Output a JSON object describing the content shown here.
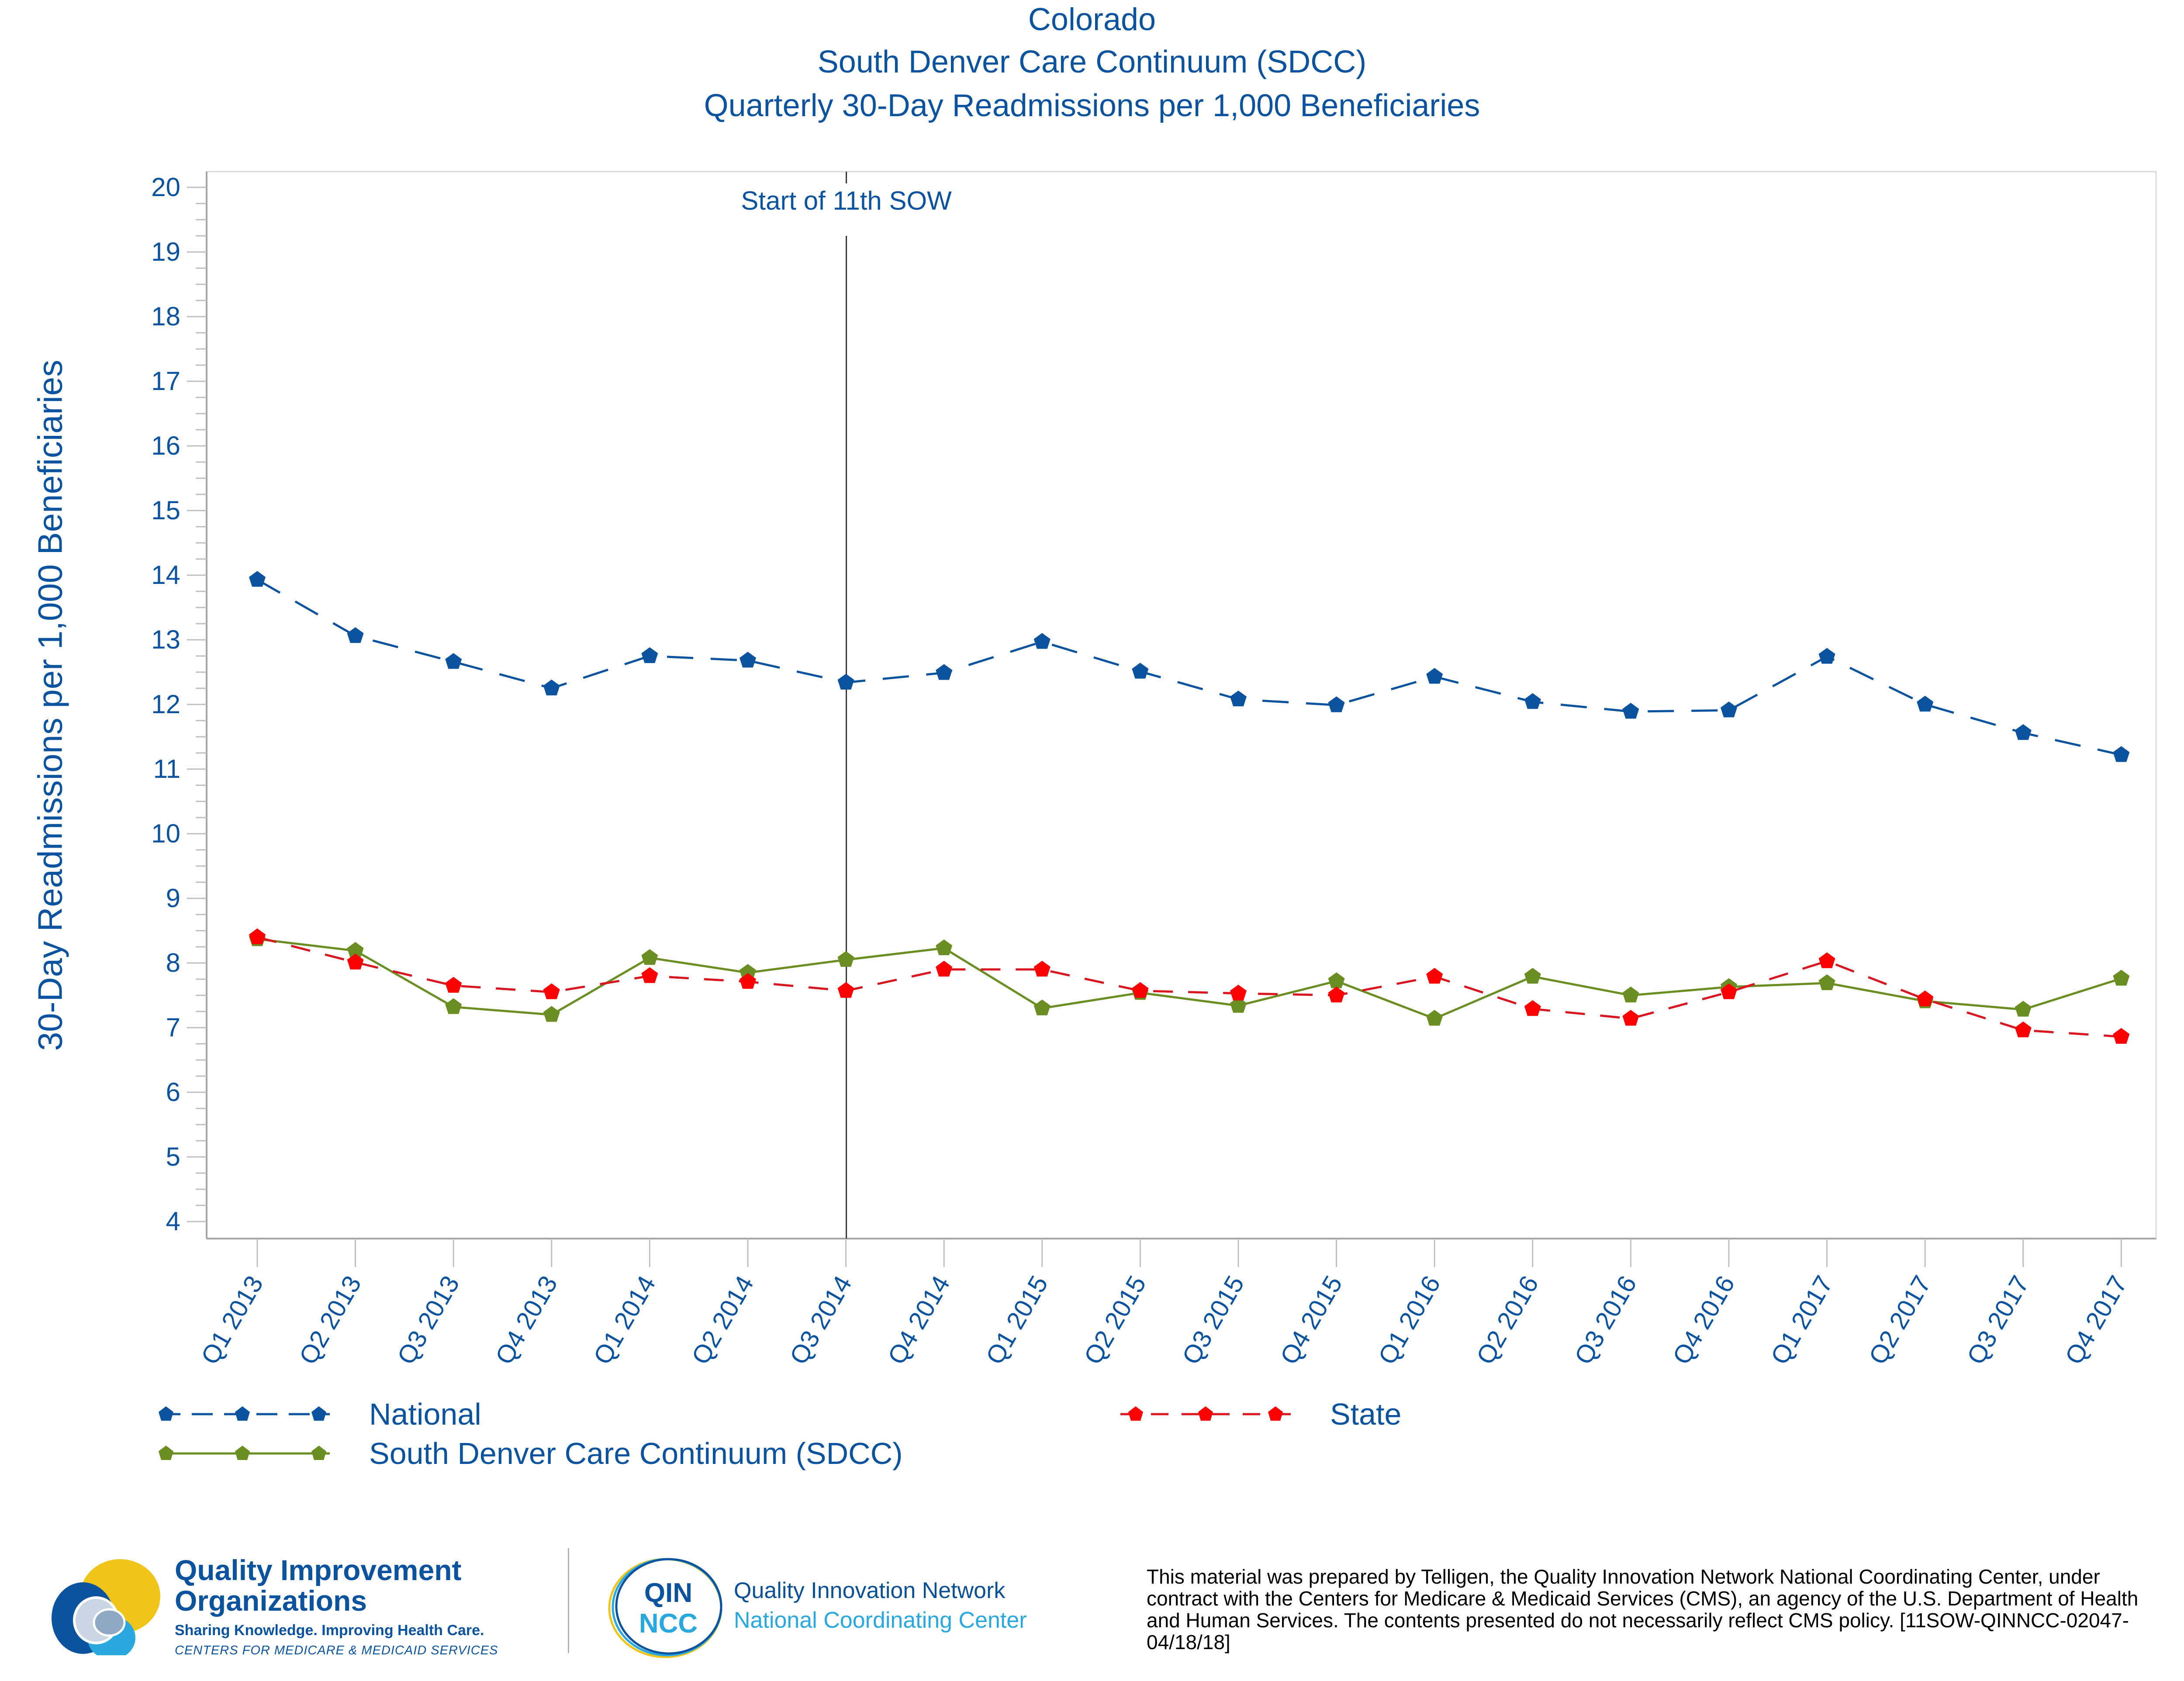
{
  "chart_data": {
    "type": "line",
    "title": [
      "Colorado",
      "South Denver Care Continuum (SDCC)",
      "Quarterly 30-Day Readmissions per 1,000 Beneficiaries"
    ],
    "xlabel": "",
    "ylabel": "30-Day Readmissions per 1,000 Beneficiaries",
    "ylim": [
      4,
      20
    ],
    "yticks": [
      "4",
      "5",
      "6",
      "7",
      "8",
      "9",
      "10",
      "11",
      "12",
      "13",
      "14",
      "15",
      "16",
      "17",
      "18",
      "19",
      "20"
    ],
    "grid": false,
    "legend_position": "bottom",
    "categories": [
      "Q1 2013",
      "Q2 2013",
      "Q3 2013",
      "Q4 2013",
      "Q1 2014",
      "Q2 2014",
      "Q3 2014",
      "Q4 2014",
      "Q1 2015",
      "Q2 2015",
      "Q3 2015",
      "Q4 2015",
      "Q1 2016",
      "Q2 2016",
      "Q3 2016",
      "Q4 2016",
      "Q1 2017",
      "Q2 2017",
      "Q3 2017",
      "Q4 2017"
    ],
    "annotations": [
      {
        "type": "vertical-line",
        "at": "Q3 2014",
        "label": "Start of 11th SOW"
      }
    ],
    "series": [
      {
        "name": "National",
        "color": "#0b539f",
        "style": "dashed",
        "values": [
          13.93,
          13.06,
          12.66,
          12.25,
          12.75,
          12.68,
          12.34,
          12.49,
          12.97,
          12.51,
          12.08,
          11.99,
          12.43,
          12.04,
          11.89,
          11.91,
          12.74,
          12.0,
          11.56,
          11.22
        ]
      },
      {
        "name": "State",
        "color": "#ff0000",
        "line_color": "#d9151f",
        "style": "dashed",
        "values": [
          8.4,
          8.01,
          7.65,
          7.55,
          7.8,
          7.71,
          7.57,
          7.9,
          7.9,
          7.57,
          7.53,
          7.5,
          7.79,
          7.29,
          7.14,
          7.55,
          8.03,
          7.44,
          6.96,
          6.86
        ]
      },
      {
        "name": "South Denver Care Continuum (SDCC)",
        "color": "#6b8e23",
        "style": "solid",
        "values": [
          8.37,
          8.19,
          7.32,
          7.2,
          8.08,
          7.85,
          8.05,
          8.23,
          7.3,
          7.54,
          7.34,
          7.72,
          7.14,
          7.79,
          7.5,
          7.63,
          7.69,
          7.41,
          7.28,
          7.76
        ]
      }
    ]
  },
  "legend": {
    "national": "National",
    "state": "State",
    "sdcc": "South Denver Care Continuum (SDCC)"
  },
  "footer": {
    "qio_title_1": "Quality Improvement",
    "qio_title_2": "Organizations",
    "qio_tagline": "Sharing Knowledge. Improving Health Care.",
    "qio_cms": "CENTERS FOR MEDICARE & MEDICAID SERVICES",
    "qin_badge_1": "QIN",
    "qin_badge_2": "NCC",
    "qin_line_1": "Quality Innovation Network",
    "qin_line_2": "National Coordinating Center",
    "disclaimer": "This material was prepared by Telligen, the Quality Innovation Network National Coordinating Center, under contract with the Centers for Medicare & Medicaid Services (CMS), an agency of the U.S. Department of Health and Human Services. The contents presented do not necessarily reflect CMS policy. [11SOW-QINNCC-02047-04/18/18]"
  }
}
